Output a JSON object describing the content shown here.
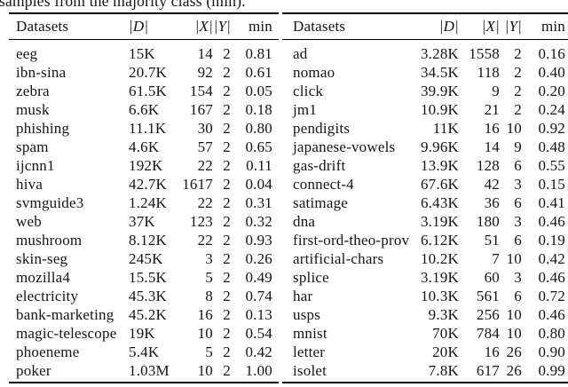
{
  "caption": "samples from the majority class (min).",
  "tables": [
    {
      "headers": [
        "Datasets",
        "|D|",
        "|X|",
        "|Y|",
        "min"
      ],
      "rows": [
        [
          "eeg",
          "15K",
          "14",
          "2",
          "0.81"
        ],
        [
          "ibn-sina",
          "20.7K",
          "92",
          "2",
          "0.61"
        ],
        [
          "zebra",
          "61.5K",
          "154",
          "2",
          "0.05"
        ],
        [
          "musk",
          "6.6K",
          "167",
          "2",
          "0.18"
        ],
        [
          "phishing",
          "11.1K",
          "30",
          "2",
          "0.80"
        ],
        [
          "spam",
          "4.6K",
          "57",
          "2",
          "0.65"
        ],
        [
          "ijcnn1",
          "192K",
          "22",
          "2",
          "0.11"
        ],
        [
          "hiva",
          "42.7K",
          "1617",
          "2",
          "0.04"
        ],
        [
          "svmguide3",
          "1.24K",
          "22",
          "2",
          "0.31"
        ],
        [
          "web",
          "37K",
          "123",
          "2",
          "0.32"
        ],
        [
          "mushroom",
          "8.12K",
          "22",
          "2",
          "0.93"
        ],
        [
          "skin-seg",
          "245K",
          "3",
          "2",
          "0.26"
        ],
        [
          "mozilla4",
          "15.5K",
          "5",
          "2",
          "0.49"
        ],
        [
          "electricity",
          "45.3K",
          "8",
          "2",
          "0.74"
        ],
        [
          "bank-marketing",
          "45.2K",
          "16",
          "2",
          "0.13"
        ],
        [
          "magic-telescope",
          "19K",
          "10",
          "2",
          "0.54"
        ],
        [
          "phoeneme",
          "5.4K",
          "5",
          "2",
          "0.42"
        ],
        [
          "poker",
          "1.03M",
          "10",
          "2",
          "1.00"
        ]
      ]
    },
    {
      "headers": [
        "Datasets",
        "|D|",
        "|X|",
        "|Y|",
        "min"
      ],
      "rows": [
        [
          "ad",
          "3.28K",
          "1558",
          "2",
          "0.16"
        ],
        [
          "nomao",
          "34.5K",
          "118",
          "2",
          "0.40"
        ],
        [
          "click",
          "39.9K",
          "9",
          "2",
          "0.20"
        ],
        [
          "jm1",
          "10.9K",
          "21",
          "2",
          "0.24"
        ],
        [
          "pendigits",
          "11K",
          "16",
          "10",
          "0.92"
        ],
        [
          "japanese-vowels",
          "9.96K",
          "14",
          "9",
          "0.48"
        ],
        [
          "gas-drift",
          "13.9K",
          "128",
          "6",
          "0.55"
        ],
        [
          "connect-4",
          "67.6K",
          "42",
          "3",
          "0.15"
        ],
        [
          "satimage",
          "6.43K",
          "36",
          "6",
          "0.41"
        ],
        [
          "dna",
          "3.19K",
          "180",
          "3",
          "0.46"
        ],
        [
          "first-ord-theo-prov",
          "6.12K",
          "51",
          "6",
          "0.19"
        ],
        [
          "artificial-chars",
          "10.2K",
          "7",
          "10",
          "0.42"
        ],
        [
          "splice",
          "3.19K",
          "60",
          "3",
          "0.46"
        ],
        [
          "har",
          "10.3K",
          "561",
          "6",
          "0.72"
        ],
        [
          "usps",
          "9.3K",
          "256",
          "10",
          "0.46"
        ],
        [
          "mnist",
          "70K",
          "784",
          "10",
          "0.80"
        ],
        [
          "letter",
          "20K",
          "16",
          "26",
          "0.90"
        ],
        [
          "isolet",
          "7.8K",
          "617",
          "26",
          "0.99"
        ]
      ]
    }
  ]
}
